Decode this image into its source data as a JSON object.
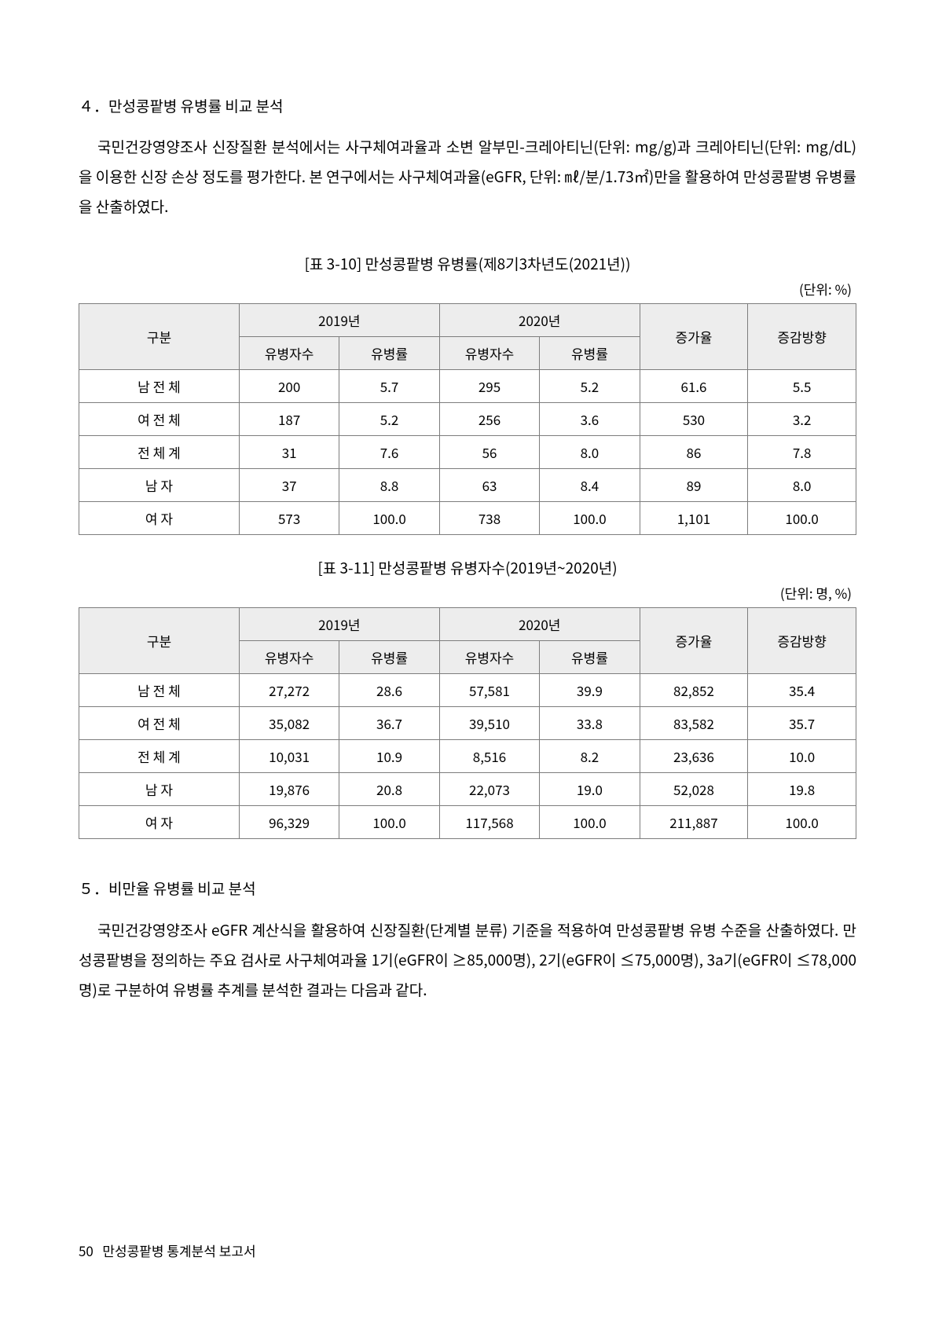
{
  "section4": {
    "heading_number": "４．",
    "heading": "４．만성콩팥병 유병률 비교 분석",
    "paragraph": "국민건강영양조사 신장질환 분석에서는 사구체여과율과 소변 알부민-크레아티닌(단위: mg/g)과 크레아티닌(단위: mg/dL)을 이용한 신장 손상 정도를 평가한다. 본 연구에서는 사구체여과율(eGFR, 단위: ㎖/분/1.73㎡)만을 활용하여 만성콩팥병 유병률을 산출하였다.",
    "table1": {
      "caption": "[표 3-10] 만성콩팥병 유병률(제8기3차년도(2021년))",
      "unit": "(단위: %)",
      "header_rows": [
        "구분",
        "2019년",
        "2020년",
        "증가율",
        "증감방향"
      ],
      "sub_headers": [
        "유병자수",
        "유병률",
        "유병자수",
        "유병률",
        "",
        ""
      ],
      "rows": [
        {
          "label": "남  전  체",
          "c": [
            "200",
            "5.7",
            "295",
            "5.2",
            "61.6",
            "5.5"
          ]
        },
        {
          "label": "여  전  체",
          "c": [
            "187",
            "5.2",
            "256",
            "3.6",
            "530",
            "3.2"
          ]
        },
        {
          "label": "전  체  계",
          "c": [
            "31",
            "7.6",
            "56",
            "8.0",
            "86",
            "7.8"
          ]
        },
        {
          "label": "남     자",
          "c": [
            "37",
            "8.8",
            "63",
            "8.4",
            "89",
            "8.0"
          ]
        },
        {
          "label": "여     자",
          "c": [
            "573",
            "100.0",
            "738",
            "100.0",
            "1,101",
            "100.0"
          ]
        }
      ]
    },
    "table2": {
      "caption": "[표 3-11] 만성콩팥병 유병자수(2019년~2020년)",
      "unit": "(단위: 명, %)",
      "header_rows": [
        "구분",
        "2019년",
        "2020년",
        "증가율",
        "증감방향"
      ],
      "sub_headers": [
        "유병자수",
        "유병률",
        "유병자수",
        "유병률",
        "",
        ""
      ],
      "rows": [
        {
          "label": "남  전  체",
          "c": [
            "27,272",
            "28.6",
            "57,581",
            "39.9",
            "82,852",
            "35.4"
          ]
        },
        {
          "label": "여  전  체",
          "c": [
            "35,082",
            "36.7",
            "39,510",
            "33.8",
            "83,582",
            "35.7"
          ]
        },
        {
          "label": "전  체  계",
          "c": [
            "10,031",
            "10.9",
            "8,516",
            "8.2",
            "23,636",
            "10.0"
          ]
        },
        {
          "label": "남     자",
          "c": [
            "19,876",
            "20.8",
            "22,073",
            "19.0",
            "52,028",
            "19.8"
          ]
        },
        {
          "label": "여     자",
          "c": [
            "96,329",
            "100.0",
            "117,568",
            "100.0",
            "211,887",
            "100.0"
          ]
        }
      ]
    }
  },
  "section5": {
    "heading_number": "５．",
    "heading": "５．비만율 유병률 비교 분석",
    "paragraph": "국민건강영양조사 eGFR 계산식을 활용하여 신장질환(단계별 분류) 기준을 적용하여 만성콩팥병 유병 수준을 산출하였다. 만성콩팥병을 정의하는 주요 검사로 사구체여과율 1기(eGFR이 ≥85,000명), 2기(eGFR이 ≤75,000명), 3a기(eGFR이 ≤78,000명)로 구분하여 유병률 추계를 분석한 결과는 다음과 같다."
  },
  "footer": {
    "page": "50",
    "running": "만성콩팥병 통계분석 보고서"
  }
}
